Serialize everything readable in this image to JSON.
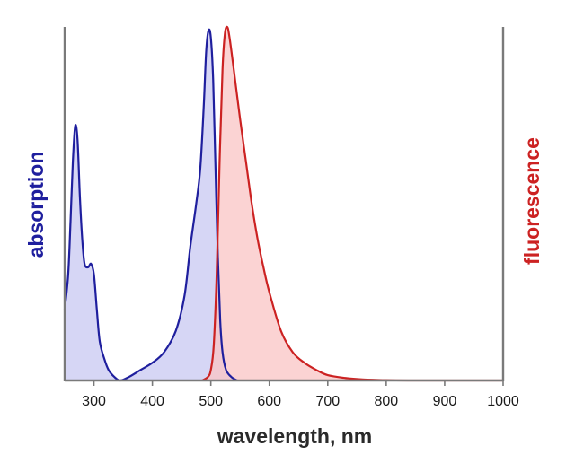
{
  "chart_data": {
    "type": "area",
    "xlabel": "wavelength, nm",
    "ylabel_left": "absorption",
    "ylabel_right": "fluorescence",
    "xlim": [
      250,
      1000
    ],
    "ylim": [
      0,
      1
    ],
    "x_ticks": [
      300,
      400,
      500,
      600,
      700,
      800,
      900,
      1000
    ],
    "grid": false,
    "legend": "none",
    "series": [
      {
        "key": "absorption",
        "axis": "left",
        "color": "#1f1f9e",
        "fill": "#c8c8f2",
        "points": [
          [
            250,
            0.2
          ],
          [
            256,
            0.3
          ],
          [
            260,
            0.45
          ],
          [
            264,
            0.62
          ],
          [
            268,
            0.72
          ],
          [
            272,
            0.68
          ],
          [
            276,
            0.52
          ],
          [
            280,
            0.4
          ],
          [
            284,
            0.33
          ],
          [
            290,
            0.32
          ],
          [
            295,
            0.33
          ],
          [
            300,
            0.3
          ],
          [
            305,
            0.2
          ],
          [
            310,
            0.11
          ],
          [
            318,
            0.06
          ],
          [
            325,
            0.03
          ],
          [
            335,
            0.01
          ],
          [
            345,
            0.0
          ],
          [
            360,
            0.01
          ],
          [
            380,
            0.03
          ],
          [
            400,
            0.05
          ],
          [
            420,
            0.08
          ],
          [
            440,
            0.14
          ],
          [
            455,
            0.24
          ],
          [
            465,
            0.38
          ],
          [
            475,
            0.5
          ],
          [
            482,
            0.6
          ],
          [
            488,
            0.78
          ],
          [
            492,
            0.93
          ],
          [
            496,
            0.99
          ],
          [
            500,
            0.97
          ],
          [
            504,
            0.85
          ],
          [
            508,
            0.6
          ],
          [
            512,
            0.35
          ],
          [
            516,
            0.17
          ],
          [
            520,
            0.08
          ],
          [
            526,
            0.03
          ],
          [
            535,
            0.01
          ],
          [
            545,
            0.0
          ]
        ]
      },
      {
        "key": "fluorescence",
        "axis": "right",
        "color": "#cc2222",
        "fill": "#f9c4c4",
        "points": [
          [
            485,
            0.0
          ],
          [
            495,
            0.01
          ],
          [
            500,
            0.03
          ],
          [
            505,
            0.1
          ],
          [
            510,
            0.3
          ],
          [
            515,
            0.62
          ],
          [
            520,
            0.88
          ],
          [
            524,
            0.98
          ],
          [
            528,
            1.0
          ],
          [
            532,
            0.97
          ],
          [
            540,
            0.87
          ],
          [
            550,
            0.74
          ],
          [
            560,
            0.62
          ],
          [
            570,
            0.5
          ],
          [
            580,
            0.4
          ],
          [
            590,
            0.32
          ],
          [
            600,
            0.25
          ],
          [
            620,
            0.14
          ],
          [
            640,
            0.08
          ],
          [
            660,
            0.05
          ],
          [
            680,
            0.03
          ],
          [
            700,
            0.015
          ],
          [
            730,
            0.007
          ],
          [
            760,
            0.003
          ],
          [
            800,
            0.001
          ],
          [
            850,
            0.0
          ],
          [
            1000,
            0.0
          ]
        ]
      }
    ]
  }
}
